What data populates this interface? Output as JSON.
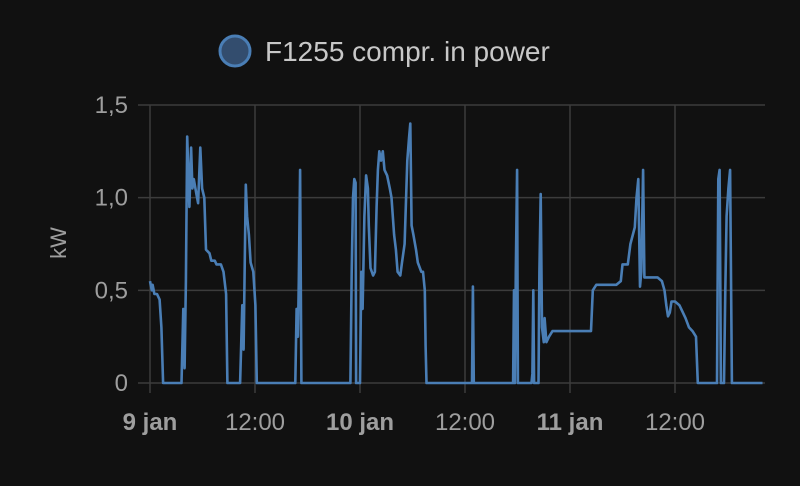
{
  "chart_data": {
    "type": "line",
    "title": "",
    "xlabel": "",
    "ylabel": "kW",
    "ylim": [
      0,
      1.5
    ],
    "xlim_hours": [
      0,
      70
    ],
    "grid": true,
    "legend_position": "top-center",
    "yticks": [
      {
        "v": 0,
        "label": "0"
      },
      {
        "v": 0.5,
        "label": "0,5"
      },
      {
        "v": 1.0,
        "label": "1,0"
      },
      {
        "v": 1.5,
        "label": "1,5"
      }
    ],
    "xticks": [
      {
        "h": 0,
        "label": "9 jan",
        "bold": true
      },
      {
        "h": 12,
        "label": "12:00",
        "bold": false
      },
      {
        "h": 24,
        "label": "10 jan",
        "bold": true
      },
      {
        "h": 36,
        "label": "12:00",
        "bold": false
      },
      {
        "h": 48,
        "label": "11 jan",
        "bold": true
      },
      {
        "h": 60,
        "label": "12:00",
        "bold": false
      }
    ],
    "series": [
      {
        "name": "F1255 compr. in power",
        "color": "#4a7eb5",
        "legend_fill": "#334d6e",
        "points": [
          [
            0.0,
            0.55
          ],
          [
            0.2,
            0.5
          ],
          [
            0.3,
            0.53
          ],
          [
            0.5,
            0.48
          ],
          [
            0.8,
            0.48
          ],
          [
            1.1,
            0.45
          ],
          [
            1.3,
            0.3
          ],
          [
            1.5,
            0.0
          ],
          [
            3.6,
            0.0
          ],
          [
            3.8,
            0.4
          ],
          [
            3.95,
            0.08
          ],
          [
            4.1,
            0.55
          ],
          [
            4.25,
            1.33
          ],
          [
            4.5,
            0.95
          ],
          [
            4.7,
            1.27
          ],
          [
            4.85,
            1.05
          ],
          [
            5.0,
            1.1
          ],
          [
            5.3,
            1.02
          ],
          [
            5.5,
            0.97
          ],
          [
            5.75,
            1.27
          ],
          [
            5.95,
            1.05
          ],
          [
            6.2,
            1.0
          ],
          [
            6.4,
            0.72
          ],
          [
            6.8,
            0.7
          ],
          [
            7.0,
            0.66
          ],
          [
            7.4,
            0.66
          ],
          [
            7.6,
            0.64
          ],
          [
            8.1,
            0.64
          ],
          [
            8.4,
            0.6
          ],
          [
            8.7,
            0.48
          ],
          [
            8.85,
            0.0
          ],
          [
            10.3,
            0.0
          ],
          [
            10.55,
            0.42
          ],
          [
            10.7,
            0.18
          ],
          [
            10.8,
            0.55
          ],
          [
            10.95,
            1.07
          ],
          [
            11.1,
            0.9
          ],
          [
            11.3,
            0.8
          ],
          [
            11.5,
            0.65
          ],
          [
            11.8,
            0.6
          ],
          [
            12.05,
            0.42
          ],
          [
            12.2,
            0.0
          ],
          [
            16.6,
            0.0
          ],
          [
            16.75,
            0.4
          ],
          [
            16.9,
            0.25
          ],
          [
            17.0,
            0.55
          ],
          [
            17.15,
            1.15
          ],
          [
            17.3,
            0.0
          ],
          [
            22.9,
            0.0
          ],
          [
            23.05,
            0.6
          ],
          [
            23.2,
            1.0
          ],
          [
            23.35,
            1.1
          ],
          [
            23.5,
            1.08
          ],
          [
            23.55,
            0.0
          ],
          [
            24.0,
            0.0
          ],
          [
            24.15,
            0.6
          ],
          [
            24.3,
            0.4
          ],
          [
            24.5,
            0.9
          ],
          [
            24.7,
            1.12
          ],
          [
            24.9,
            1.05
          ],
          [
            25.0,
            0.85
          ],
          [
            25.2,
            0.62
          ],
          [
            25.5,
            0.58
          ],
          [
            25.7,
            0.6
          ],
          [
            25.9,
            0.95
          ],
          [
            26.05,
            1.15
          ],
          [
            26.2,
            1.25
          ],
          [
            26.4,
            1.2
          ],
          [
            26.6,
            1.25
          ],
          [
            26.8,
            1.15
          ],
          [
            27.1,
            1.12
          ],
          [
            27.4,
            1.05
          ],
          [
            27.6,
            1.0
          ],
          [
            27.9,
            0.8
          ],
          [
            28.1,
            0.72
          ],
          [
            28.3,
            0.6
          ],
          [
            28.6,
            0.58
          ],
          [
            28.8,
            0.65
          ],
          [
            29.1,
            0.75
          ],
          [
            29.2,
            0.9
          ],
          [
            29.4,
            1.2
          ],
          [
            29.6,
            1.32
          ],
          [
            29.75,
            1.4
          ],
          [
            29.9,
            0.85
          ],
          [
            30.1,
            0.8
          ],
          [
            30.4,
            0.72
          ],
          [
            30.6,
            0.65
          ],
          [
            31.0,
            0.6
          ],
          [
            31.2,
            0.6
          ],
          [
            31.4,
            0.5
          ],
          [
            31.5,
            0.2
          ],
          [
            31.6,
            0.0
          ],
          [
            36.8,
            0.0
          ],
          [
            36.9,
            0.52
          ],
          [
            37.0,
            0.0
          ],
          [
            41.5,
            0.0
          ],
          [
            41.6,
            0.5
          ],
          [
            41.7,
            0.0
          ],
          [
            41.8,
            0.6
          ],
          [
            41.95,
            1.15
          ],
          [
            42.05,
            0.0
          ],
          [
            43.6,
            0.0
          ],
          [
            43.7,
            0.05
          ],
          [
            43.8,
            0.5
          ],
          [
            43.9,
            0.0
          ],
          [
            44.4,
            0.0
          ],
          [
            44.5,
            0.6
          ],
          [
            44.65,
            1.02
          ],
          [
            44.8,
            0.3
          ],
          [
            45.0,
            0.22
          ],
          [
            45.1,
            0.35
          ],
          [
            45.3,
            0.22
          ],
          [
            45.6,
            0.25
          ],
          [
            46.0,
            0.28
          ],
          [
            47.0,
            0.28
          ],
          [
            48.0,
            0.28
          ],
          [
            49.0,
            0.28
          ],
          [
            50.4,
            0.28
          ],
          [
            50.6,
            0.5
          ],
          [
            51.0,
            0.53
          ],
          [
            52.0,
            0.53
          ],
          [
            53.3,
            0.53
          ],
          [
            53.8,
            0.55
          ],
          [
            54.0,
            0.64
          ],
          [
            54.6,
            0.64
          ],
          [
            54.9,
            0.75
          ],
          [
            55.4,
            0.84
          ],
          [
            55.6,
            1.0
          ],
          [
            55.8,
            1.1
          ],
          [
            56.0,
            0.52
          ],
          [
            56.15,
            0.6
          ],
          [
            56.35,
            1.15
          ],
          [
            56.5,
            0.57
          ],
          [
            57.0,
            0.57
          ],
          [
            58.0,
            0.57
          ],
          [
            58.5,
            0.55
          ],
          [
            58.8,
            0.5
          ],
          [
            59.0,
            0.42
          ],
          [
            59.2,
            0.36
          ],
          [
            59.4,
            0.38
          ],
          [
            59.6,
            0.44
          ],
          [
            60.0,
            0.44
          ],
          [
            60.5,
            0.42
          ],
          [
            60.9,
            0.38
          ],
          [
            61.2,
            0.35
          ],
          [
            61.6,
            0.3
          ],
          [
            62.0,
            0.28
          ],
          [
            62.4,
            0.25
          ],
          [
            62.6,
            0.0
          ],
          [
            64.8,
            0.0
          ],
          [
            64.95,
            1.1
          ],
          [
            65.1,
            1.15
          ],
          [
            65.25,
            0.0
          ],
          [
            65.6,
            0.0
          ],
          [
            65.75,
            0.5
          ],
          [
            65.9,
            0.9
          ],
          [
            66.1,
            1.05
          ],
          [
            66.3,
            1.15
          ],
          [
            66.5,
            0.0
          ],
          [
            70.0,
            0.0
          ]
        ]
      }
    ]
  }
}
